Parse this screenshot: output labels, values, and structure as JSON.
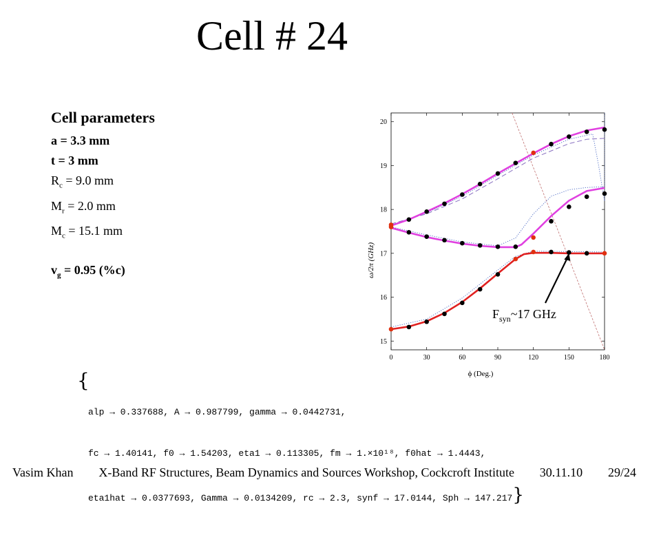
{
  "slide_title": "Cell # 24",
  "params": {
    "heading": "Cell parameters",
    "a": "a = 3.3 mm",
    "t": "t = 3 mm",
    "rc_pre": "R",
    "rc_sub": "c",
    "rc_post": " = 9.0 mm",
    "mr_pre": "M",
    "mr_sub": "r",
    "mr_post": " = 2.0 mm",
    "mc_pre": "M",
    "mc_sub": "c",
    "mc_post": " = 15.1 mm",
    "vg_pre": "v",
    "vg_sub": "g",
    "vg_post": " = 0.95 (%c)"
  },
  "fit_output": {
    "line1": "alp → 0.337688, A → 0.987799, gamma → 0.0442731,",
    "line2": "fc → 1.40141, f0 → 1.54203, eta1 → 0.113305, fm → 1.×10¹⁸, f0hat → 1.4443,",
    "line3": "eta1hat → 0.0377693, Gamma → 0.0134209, rc → 2.3, synf → 17.0144, Sph → 147.217"
  },
  "footer": {
    "author": "Vasim Khan",
    "event": "X-Band RF Structures, Beam Dynamics and Sources Workshop, Cockcroft Institute",
    "date": "30.11.10",
    "page": "29/24"
  },
  "chart_data": {
    "type": "scatter",
    "xlabel": "ϕ (Deg.)",
    "ylabel": "ω/2π (GHz)",
    "xlim": [
      0,
      180
    ],
    "ylim": [
      14.8,
      20.2
    ],
    "xticks": [
      0,
      30,
      60,
      90,
      120,
      150,
      180
    ],
    "yticks": [
      15,
      16,
      17,
      18,
      19,
      20
    ],
    "grid": false,
    "annotation": {
      "pre": "F",
      "sub": "syn",
      "post": "~17 GHz",
      "target": [
        150,
        17.0
      ]
    },
    "colors": {
      "upper_fit": "#e040e0",
      "lower_fit": "#e02020",
      "dashed_purple": "#8870c0",
      "dotted_blue": "#4060c0",
      "light_line": "#c07070",
      "point_black": "#000000",
      "point_red": "#e03010"
    },
    "series": [
      {
        "role": "measured_points_mode1",
        "x": [
          0,
          15,
          30,
          45,
          60,
          75,
          90,
          105,
          120,
          135,
          150,
          165,
          180
        ],
        "y": [
          17.65,
          17.77,
          17.95,
          18.13,
          18.34,
          18.58,
          18.82,
          19.06,
          19.29,
          19.49,
          19.66,
          19.77,
          19.82
        ],
        "colors": [
          "red",
          "black",
          "black",
          "black",
          "black",
          "black",
          "black",
          "black",
          "red",
          "black",
          "black",
          "black",
          "black"
        ]
      },
      {
        "role": "measured_points_mode2",
        "x": [
          0,
          15,
          30,
          45,
          60,
          75,
          90,
          105,
          120,
          135,
          150,
          165,
          180
        ],
        "y": [
          17.6,
          17.48,
          17.38,
          17.3,
          17.23,
          17.18,
          17.15,
          17.15,
          17.36,
          17.73,
          18.06,
          18.29,
          18.36
        ],
        "colors": [
          "red",
          "black",
          "black",
          "black",
          "black",
          "black",
          "black",
          "black",
          "red",
          "black",
          "black",
          "black",
          "black"
        ]
      },
      {
        "role": "measured_points_mode3",
        "x": [
          0,
          15,
          30,
          45,
          60,
          75,
          90,
          105,
          120,
          135,
          150,
          165,
          180
        ],
        "y": [
          15.27,
          15.32,
          15.44,
          15.62,
          15.87,
          16.18,
          16.52,
          16.87,
          17.03,
          17.03,
          17.02,
          17.0,
          17.0
        ],
        "colors": [
          "red",
          "black",
          "black",
          "black",
          "black",
          "black",
          "black",
          "red",
          "red",
          "black",
          "black",
          "black",
          "red"
        ]
      },
      {
        "role": "fit_mode1",
        "x": [
          0,
          15,
          30,
          45,
          60,
          75,
          90,
          105,
          120,
          135,
          150,
          165,
          180
        ],
        "y": [
          17.63,
          17.77,
          17.95,
          18.14,
          18.35,
          18.58,
          18.82,
          19.05,
          19.28,
          19.49,
          19.67,
          19.8,
          19.87
        ]
      },
      {
        "role": "fit_mode2",
        "x": [
          0,
          15,
          30,
          45,
          60,
          75,
          90,
          105,
          110,
          120,
          135,
          150,
          165,
          180
        ],
        "y": [
          17.58,
          17.47,
          17.37,
          17.29,
          17.22,
          17.17,
          17.14,
          17.14,
          17.2,
          17.45,
          17.85,
          18.2,
          18.42,
          18.49
        ]
      },
      {
        "role": "fit_mode3",
        "x": [
          0,
          15,
          30,
          45,
          60,
          75,
          90,
          105,
          112,
          120,
          135,
          150,
          165,
          180
        ],
        "y": [
          15.27,
          15.33,
          15.45,
          15.64,
          15.89,
          16.2,
          16.54,
          16.87,
          16.98,
          17.01,
          17.01,
          17.0,
          17.0,
          17.0
        ]
      },
      {
        "role": "dashed_mode1",
        "x": [
          0,
          30,
          60,
          90,
          120,
          150,
          165,
          180
        ],
        "y": [
          17.67,
          17.9,
          18.24,
          18.7,
          19.17,
          19.5,
          19.6,
          19.62
        ]
      },
      {
        "role": "dotted_mode1",
        "x": [
          0,
          30,
          60,
          90,
          120,
          150,
          170,
          175,
          178,
          180
        ],
        "y": [
          17.65,
          17.92,
          18.3,
          18.78,
          19.24,
          19.6,
          19.72,
          19.0,
          18.5,
          18.2
        ]
      },
      {
        "role": "dotted_mode2",
        "x": [
          0,
          30,
          60,
          90,
          105,
          120,
          135,
          150,
          165,
          180
        ],
        "y": [
          17.6,
          17.42,
          17.26,
          17.17,
          17.35,
          17.9,
          18.3,
          18.45,
          18.5,
          18.52
        ]
      },
      {
        "role": "dotted_mode3",
        "x": [
          0,
          30,
          60,
          90,
          105,
          120,
          150,
          180
        ],
        "y": [
          15.32,
          15.5,
          15.98,
          16.62,
          16.93,
          17.05,
          17.04,
          17.03
        ]
      },
      {
        "role": "light_line",
        "x": [
          102,
          180
        ],
        "y": [
          20.2,
          14.8
        ]
      },
      {
        "role": "vertical_dotted",
        "x": [
          180,
          180
        ],
        "y": [
          18.2,
          20.2
        ]
      }
    ]
  }
}
